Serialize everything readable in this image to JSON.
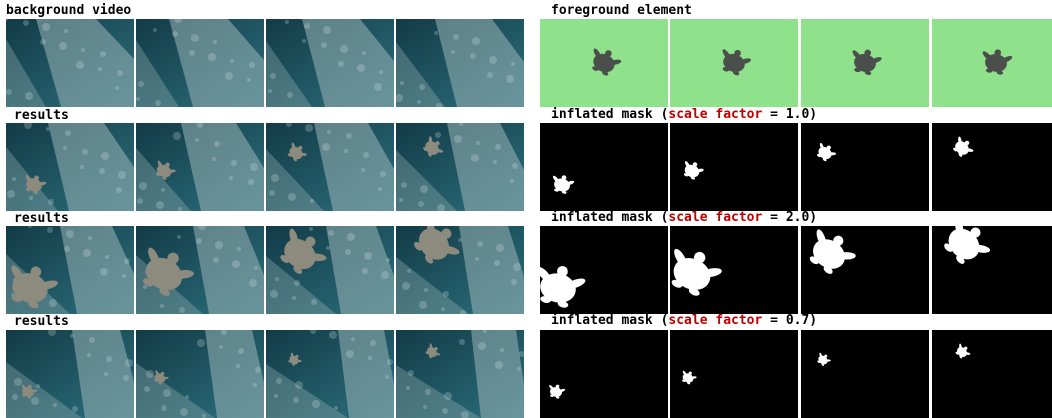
{
  "colors": {
    "mask_bg": "#000000",
    "mask_fg": "#ffffff",
    "green_bg": "#8fe28b",
    "water_dark": "#123b47",
    "water_mid": "#2c6f7c",
    "rock": "#9ab5b8",
    "turtle": "#4a4f4c",
    "highlight_red": "#c00000"
  },
  "labels": {
    "background": "background video",
    "foreground": "foreground element",
    "results": "results",
    "mask_prefix": "inflated mask (",
    "mask_key": "scale factor",
    "mask_eq": " = ",
    "mask_suffix": ")"
  },
  "rows": [
    {
      "left": "background",
      "right": "foreground"
    },
    {
      "left": "results",
      "right": "mask",
      "scale": "1.0"
    },
    {
      "left": "results",
      "right": "mask",
      "scale": "2.0"
    },
    {
      "left": "results",
      "right": "mask",
      "scale": "0.7"
    }
  ]
}
